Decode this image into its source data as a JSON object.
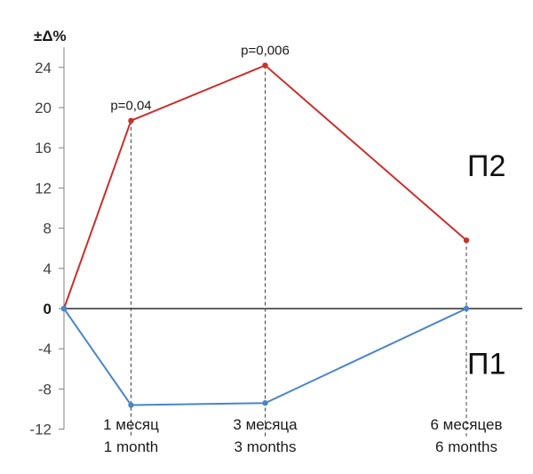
{
  "chart_data": {
    "type": "line",
    "ylabel": "±Δ%",
    "ylim": [
      -12,
      26
    ],
    "yticks": [
      24,
      20,
      16,
      12,
      8,
      4,
      0,
      -4,
      -8,
      -12
    ],
    "categories": [
      {
        "line1": "",
        "line2": ""
      },
      {
        "line1": "1 месяц",
        "line2": "1 month"
      },
      {
        "line1": "3 месяца",
        "line2": "3 months"
      },
      {
        "line1": "6 месяцев",
        "line2": "6 months"
      }
    ],
    "x": [
      0,
      1,
      3,
      6
    ],
    "series": [
      {
        "name": "П2",
        "color": "#c9302c",
        "values": [
          0,
          18.7,
          24.2,
          6.8
        ]
      },
      {
        "name": "П1",
        "color": "#4a86c5",
        "values": [
          0,
          -9.6,
          -9.4,
          0
        ]
      }
    ],
    "annotations": [
      {
        "text": "p=0,04",
        "x": 1,
        "y": 18.7
      },
      {
        "text": "p=0,006",
        "x": 3,
        "y": 24.2
      }
    ],
    "grid": false,
    "dashed_guides": true
  }
}
